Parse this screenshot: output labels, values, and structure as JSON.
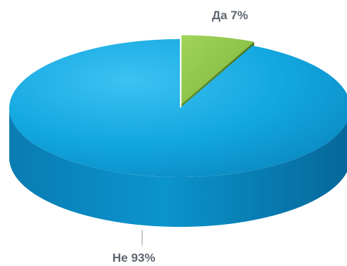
{
  "chart_data": {
    "type": "pie",
    "style": "3d",
    "slices": [
      {
        "label": "Да",
        "value": 7,
        "display": "Да 7%",
        "color": "#8cc43e",
        "exploded": true
      },
      {
        "label": "Не",
        "value": 93,
        "display": "Не 93%",
        "color": "#0a9fd6",
        "exploded": false
      }
    ],
    "title": "",
    "legend": "none"
  }
}
